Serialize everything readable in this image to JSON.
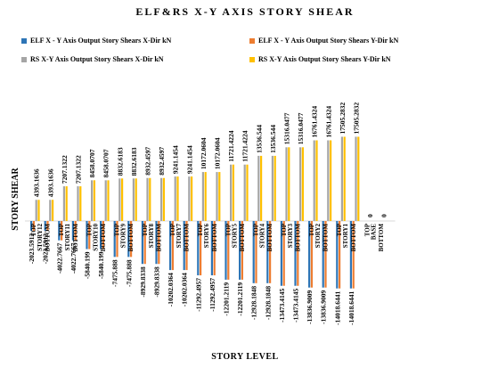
{
  "chart_data": {
    "type": "bar",
    "title": "ELF&RS X-Y AXIS STORY SHEAR",
    "xlabel": "STORY LEVEL",
    "ylabel": "STORY SHEAR",
    "legend_position": "top",
    "categories": [
      [
        "STORY12",
        "TOP"
      ],
      [
        "STORY12",
        "BOTTOM"
      ],
      [
        "STORY11",
        "TOP"
      ],
      [
        "STORY11",
        "BOTTOM"
      ],
      [
        "STORY10",
        "TOP"
      ],
      [
        "STORY10",
        "BOTTOM"
      ],
      [
        "STORY9",
        "TOP"
      ],
      [
        "STORY9",
        "BOTTOM"
      ],
      [
        "STORY8",
        "TOP"
      ],
      [
        "STORY8",
        "BOTTOM"
      ],
      [
        "STORY7",
        "TOP"
      ],
      [
        "STORY7",
        "BOTTOM"
      ],
      [
        "STORY6",
        "TOP"
      ],
      [
        "STORY6",
        "BOTTOM"
      ],
      [
        "STORY5",
        "TOP"
      ],
      [
        "STORY5",
        "BOTTOM"
      ],
      [
        "STORY4",
        "TOP"
      ],
      [
        "STORY4",
        "BOTTOM"
      ],
      [
        "STORY3",
        "TOP"
      ],
      [
        "STORY3",
        "BOTTOM"
      ],
      [
        "STORY2",
        "TOP"
      ],
      [
        "STORY2",
        "BOTTOM"
      ],
      [
        "STORY1",
        "TOP"
      ],
      [
        "STORY1",
        "BOTTOM"
      ],
      [
        "BASE",
        "TOP"
      ],
      [
        "BASE",
        "BOTTOM"
      ]
    ],
    "series": [
      {
        "name": "ELF X - Y Axis Output Story Shears X-Dir kN",
        "color": "#2e75b6",
        "values": [
          -2023.5912,
          -2023.5912,
          -4022.7667,
          -4022.7667,
          -5840.199,
          -5840.199,
          -7475.888,
          -7475.888,
          -8929.8338,
          -8929.8338,
          -10202.0364,
          -10202.0364,
          -11292.4957,
          -11292.4957,
          -12201.2119,
          -12201.2119,
          -12928.1848,
          -12928.1848,
          -13473.4145,
          -13473.4145,
          -13836.9009,
          -13836.9009,
          -14018.6441,
          -14018.6441,
          0,
          0
        ]
      },
      {
        "name": "ELF X - Y Axis Output Story Shears Y-Dir kN",
        "color": "#ed7d31",
        "values": [
          -2023.5912,
          -2023.5912,
          -4022.7667,
          -4022.7667,
          -5840.199,
          -5840.199,
          -7475.888,
          -7475.888,
          -8929.8338,
          -8929.8338,
          -10202.0364,
          -10202.0364,
          -11292.4957,
          -11292.4957,
          -12201.2119,
          -12201.2119,
          -12928.1848,
          -12928.1848,
          -13473.4145,
          -13473.4145,
          -13836.9009,
          -13836.9009,
          -14018.6441,
          -14018.6441,
          0,
          0
        ]
      },
      {
        "name": "RS X-Y Axis Output Story Shears X-Dir kN",
        "color": "#a5a5a5",
        "values": [
          4393.1636,
          4393.1636,
          7207.1322,
          7207.1322,
          8458.0707,
          8458.0707,
          8832.6183,
          8832.6183,
          8932.4597,
          8932.4597,
          9241.1454,
          9241.1454,
          10172.0604,
          10172.0604,
          11721.4224,
          11721.4224,
          13536.544,
          13536.544,
          15316.0477,
          15316.0477,
          16761.4324,
          16761.4324,
          17505.2832,
          17505.2832,
          0,
          0
        ]
      },
      {
        "name": "RS X-Y Axis Output Story Shears Y-Dir kN",
        "color": "#ffc000",
        "values": [
          4393.1636,
          4393.1636,
          7207.1322,
          7207.1322,
          8458.0707,
          8458.0707,
          8832.6183,
          8832.6183,
          8932.4597,
          8932.4597,
          9241.1454,
          9241.1454,
          10172.0604,
          10172.0604,
          11721.4224,
          11721.4224,
          13536.544,
          13536.544,
          15316.0477,
          15316.0477,
          16761.4324,
          16761.4324,
          17505.2832,
          17505.2832,
          0,
          0
        ]
      }
    ],
    "data_labels": [
      [
        "-2023.5912",
        "-2023.5912",
        "-4022.7667",
        "-4022.7667",
        "-5840.199",
        "-5840.199",
        "-7475.888",
        "-7475.888",
        "-8929.8338",
        "-8929.8338",
        "-10202.0364",
        "-10202.0364",
        "-11292.4957",
        "-11292.4957",
        "-12201.2119",
        "-12201.2119",
        "-12928.1848",
        "-12928.1848",
        "-13473.4145",
        "-13473.4145",
        "-13836.9009",
        "-13836.9009",
        "-14018.6441",
        "-14018.6441",
        "",
        ""
      ],
      [
        "",
        "",
        "",
        "",
        "",
        "",
        "",
        "",
        "",
        "",
        "",
        "",
        "",
        "",
        "",
        "",
        "",
        "",
        "",
        "",
        "",
        "",
        "",
        "",
        "",
        ""
      ],
      [
        "4393.1636",
        "4393.1636",
        "7207.1322",
        "7207.1322",
        "8458.0707",
        "8458.0707",
        "8832.6183",
        "8832.6183",
        "8932.4597",
        "8932.4597",
        "9241.1454",
        "9241.1454",
        "10172.0604",
        "10172.0604",
        "11721.4224",
        "11721.4224",
        "13536.544",
        "13536.544",
        "15316.0477",
        "15316.0477",
        "16761.4324",
        "16761.4324",
        "17505.2832",
        "17505.2832",
        "0",
        "0"
      ],
      [
        "",
        "",
        "",
        "",
        "",
        "",
        "",
        "",
        "",
        "",
        "",
        "",
        "",
        "",
        "",
        "",
        "",
        "",
        "",
        "",
        "",
        "",
        "",
        "",
        "",
        ""
      ]
    ]
  }
}
